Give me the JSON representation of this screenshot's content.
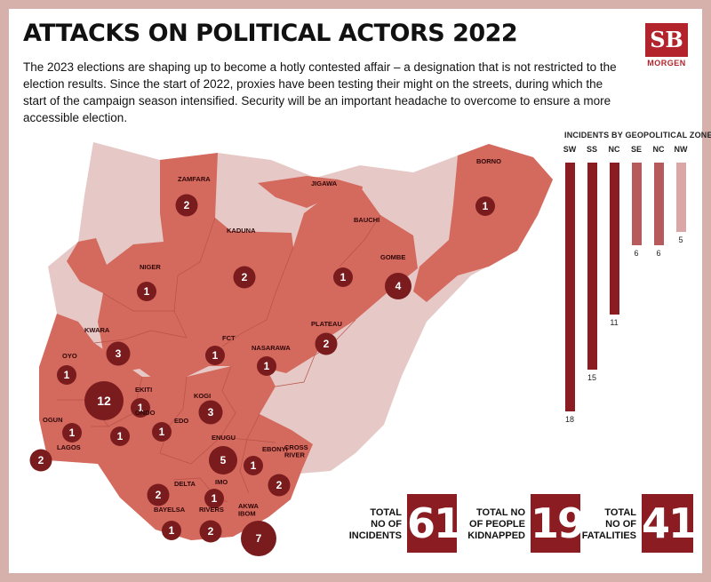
{
  "title": "ATTACKS ON POLITICAL ACTORS 2022",
  "intro": "The 2023 elections are shaping up to become a hotly contested affair – a designation that is not restricted to the election results. Since the start of 2022, proxies have been testing their might on the streets, during which the start of the campaign season intensified. Security will be an important headache to overcome to ensure a more accessible election.",
  "logo": {
    "mark": "SB",
    "word": "MORGEN"
  },
  "colors": {
    "background": "#d6b1ab",
    "map_base": "#e6c9c6",
    "state_fill": "#d4695d",
    "circle": "#7a1c1e",
    "stat_box": "#8b1d22"
  },
  "states": [
    {
      "label": "ZAMFARA",
      "count": "2"
    },
    {
      "label": "JIGAWA",
      "count": ""
    },
    {
      "label": "BORNO",
      "count": "1"
    },
    {
      "label": "BAUCHI",
      "count": ""
    },
    {
      "label": "KADUNA",
      "count": "2"
    },
    {
      "label": "NIGER",
      "count": "1"
    },
    {
      "label": "GOMBE",
      "count": "4"
    },
    {
      "label": "",
      "count": "1"
    },
    {
      "label": "KWARA",
      "count": "3"
    },
    {
      "label": "FCT",
      "count": "1"
    },
    {
      "label": "PLATEAU",
      "count": "2"
    },
    {
      "label": "NASARAWA",
      "count": "1"
    },
    {
      "label": "OYO",
      "count": "1"
    },
    {
      "label": "",
      "count": "12"
    },
    {
      "label": "EKITI",
      "count": "1"
    },
    {
      "label": "KOGI",
      "count": "3"
    },
    {
      "label": "ONDO",
      "count": "1"
    },
    {
      "label": "EDO",
      "count": "1"
    },
    {
      "label": "OGUN",
      "count": "1"
    },
    {
      "label": "LAGOS",
      "count": "2"
    },
    {
      "label": "ENUGU",
      "count": "5"
    },
    {
      "label": "EBONYI",
      "count": "1"
    },
    {
      "label": "CROSS RIVER",
      "count": "2"
    },
    {
      "label": "DELTA",
      "count": "2"
    },
    {
      "label": "IMO",
      "count": "1"
    },
    {
      "label": "BAYELSA",
      "count": "1"
    },
    {
      "label": "RIVERS",
      "count": "2"
    },
    {
      "label": "AKWA IBOM",
      "count": "7"
    }
  ],
  "zones": {
    "title": "INCIDENTS BY GEOPOLITICAL ZONES",
    "bars": [
      {
        "name": "SW",
        "value": 18,
        "label": "18",
        "color": "#8b1d22"
      },
      {
        "name": "SS",
        "value": 15,
        "label": "15",
        "color": "#8b1d22"
      },
      {
        "name": "NC",
        "value": 11,
        "label": "11",
        "color": "#8b1d22"
      },
      {
        "name": "SE",
        "value": 6,
        "label": "6",
        "color": "#b65a5c"
      },
      {
        "name": "NC",
        "value": 6,
        "label": "6",
        "color": "#b65a5c"
      },
      {
        "name": "NW",
        "value": 5,
        "label": "5",
        "color": "#dba6a6"
      }
    ]
  },
  "stats": [
    {
      "label": "TOTAL\nNO OF\nINCIDENTS",
      "value": "61"
    },
    {
      "label": "TOTAL NO\nOF PEOPLE\nKIDNAPPED",
      "value": "19"
    },
    {
      "label": "TOTAL\nNO OF\nFATALITIES",
      "value": "41"
    }
  ]
}
